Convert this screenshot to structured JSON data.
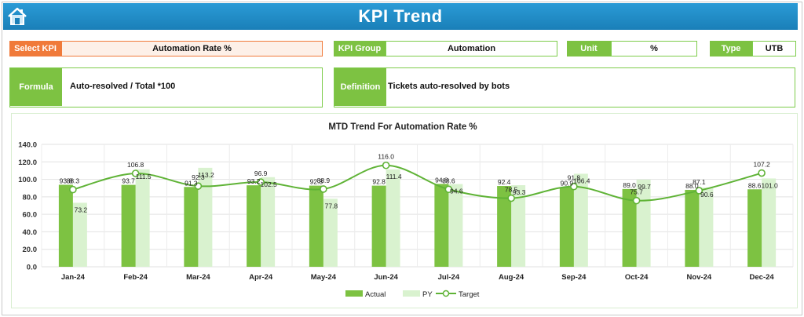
{
  "header": {
    "title": "KPI Trend",
    "home_icon": "home-icon"
  },
  "selectors": {
    "select_kpi": {
      "label": "Select KPI",
      "value": "Automation Rate %"
    },
    "kpi_group": {
      "label": "KPI Group",
      "value": "Automation"
    },
    "unit": {
      "label": "Unit",
      "value": "%"
    },
    "type": {
      "label": "Type",
      "value": "UTB"
    }
  },
  "formula": {
    "label": "Formula",
    "value": "Auto-resolved / Total *100"
  },
  "definition": {
    "label": "Definition",
    "value": "Tickets auto-resolved by bots"
  },
  "colors": {
    "header": "#1a7fb8",
    "accent_orange": "#f07a3a",
    "green": "#7dc242",
    "light_green": "#d9f2cf",
    "target_line": "#5fb336"
  },
  "chart_data": {
    "type": "bar",
    "title": "MTD Trend For Automation Rate %",
    "categories": [
      "Jan-24",
      "Feb-24",
      "Mar-24",
      "Apr-24",
      "May-24",
      "Jun-24",
      "Jul-24",
      "Aug-24",
      "Sep-24",
      "Oct-24",
      "Nov-24",
      "Dec-24"
    ],
    "series": [
      {
        "name": "Actual",
        "values": [
          93.8,
          93.7,
          91.3,
          93.2,
          92.8,
          92.8,
          94.8,
          92.4,
          90.9,
          89.0,
          88.0,
          88.6
        ]
      },
      {
        "name": "PY",
        "values": [
          73.2,
          111.5,
          113.2,
          102.5,
          77.8,
          111.4,
          94.6,
          93.3,
          106.4,
          99.7,
          90.6,
          101.0
        ]
      },
      {
        "name": "Target",
        "type": "line",
        "values": [
          88.3,
          106.8,
          92.3,
          96.9,
          88.9,
          116.0,
          88.6,
          78.5,
          91.8,
          75.7,
          87.1,
          107.2
        ]
      }
    ],
    "ylim": [
      0,
      140
    ],
    "yticks": [
      "0.0",
      "20.0",
      "40.0",
      "60.0",
      "80.0",
      "100.0",
      "120.0",
      "140.0"
    ],
    "grid": true,
    "legend": "bottom"
  }
}
